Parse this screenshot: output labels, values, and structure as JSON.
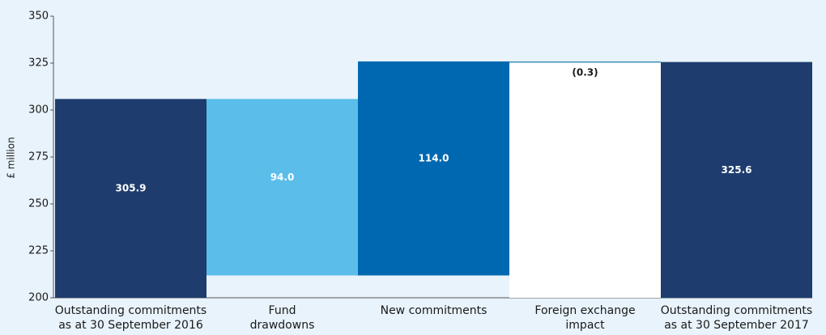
{
  "chart_data": {
    "type": "waterfall",
    "y_label": "£ million",
    "categories": [
      "Outstanding commitments\nas at 30 September 2016",
      "Fund\ndrawdowns",
      "New commitments",
      "Foreign exchange\nimpact",
      "Outstanding commitments\nas at 30 September 2017"
    ],
    "values": [
      305.9,
      -94.0,
      114.0,
      -0.3,
      325.6
    ],
    "value_labels": [
      "305.9",
      "94.0",
      "114.0",
      "(0.3)",
      "325.6"
    ],
    "measure": [
      "total",
      "relative",
      "relative",
      "relative",
      "total"
    ],
    "colors": [
      "#1e3c6e",
      "#5bbde9",
      "#0068b0",
      "#3a8fb7",
      "#1e3c6e"
    ],
    "ylim": [
      200,
      350
    ],
    "yticks": [
      200,
      225,
      250,
      275,
      300,
      325,
      350
    ],
    "grid": false
  }
}
